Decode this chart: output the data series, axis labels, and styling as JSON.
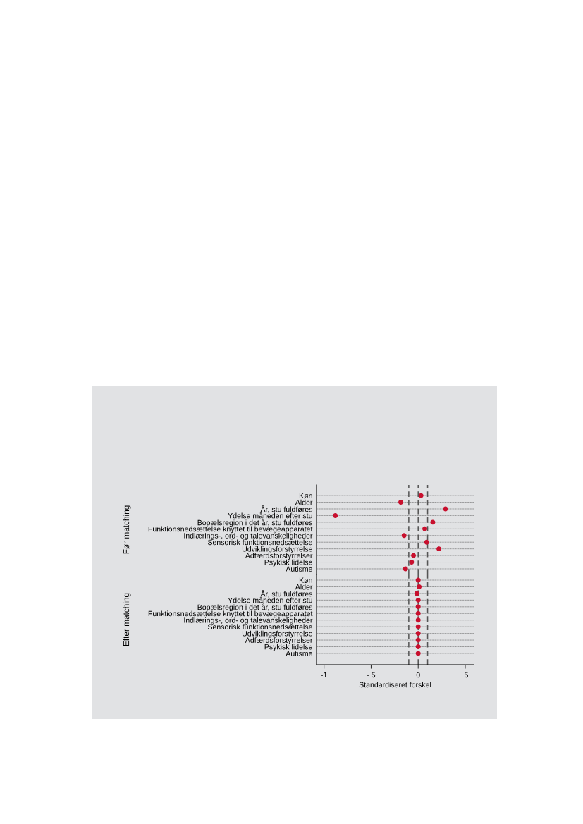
{
  "chart_data": [
    {
      "type": "scatter",
      "ylabel": "Før matching",
      "categories": [
        "Køn",
        "Alder",
        "År, stu fuldføres",
        "Ydelse måneden efter stu",
        "Bopælsregion i det år, stu fuldføres",
        "Funktionsnedsættelse knyttet til bevægeapparatet",
        "Indlærings-, ord- og talevanskeligheder",
        "Sensorisk funktionsnedsættelse",
        "Udviklingsforstyrrelse",
        "Adfærdsforstyrrelser",
        "Psykisk lidelse",
        "Autisme"
      ],
      "orientation": "horizontal",
      "series": [
        {
          "color": "#c8102e",
          "values": [
            0.03,
            -0.185,
            0.29,
            -0.88,
            0.155,
            0.07,
            -0.15,
            0.09,
            0.22,
            -0.05,
            -0.07,
            -0.135
          ]
        }
      ],
      "xlim": [
        -1.08,
        0.59
      ],
      "tick_labels": "y",
      "grid": "y",
      "marker": "circle",
      "ref_lines": [
        {
          "axis": "x",
          "value": -0.1,
          "color": "#555555",
          "line_style": "dashed"
        },
        {
          "axis": "x",
          "value": 0,
          "color": "#555555",
          "line_style": "dashed"
        },
        {
          "axis": "x",
          "value": 0.1,
          "color": "#555555",
          "line_style": "dashed"
        }
      ]
    },
    {
      "type": "scatter",
      "ylabel": "Efter matching",
      "xlabel": "Standardiseret forskel",
      "categories": [
        "Køn",
        "Alder",
        "År, stu fuldføres",
        "Ydelse måneden efter stu",
        "Bopælsregion i det år, stu fuldføres",
        "Funktionsnedsættelse knyttet til bevægeapparatet",
        "Indlærings-, ord- og talevanskeligheder",
        "Sensorisk funktionsnedsættelse",
        "Udviklingsforstyrrelse",
        "Adfærdsforstyrrelser",
        "Psykisk lidelse",
        "Autisme"
      ],
      "orientation": "horizontal",
      "series": [
        {
          "color": "#c8102e",
          "values": [
            0,
            0.01,
            -0.015,
            0,
            0,
            0,
            0,
            0,
            0,
            0,
            0,
            0
          ]
        }
      ],
      "xlim": [
        -1.08,
        0.59
      ],
      "xticks": [
        {
          "value": -1,
          "label": "-1"
        },
        {
          "value": -0.5,
          "label": "-.5"
        },
        0,
        {
          "value": 0.5,
          "label": ".5"
        }
      ],
      "grid": "y",
      "marker": "circle",
      "ref_lines": [
        {
          "axis": "x",
          "value": -0.1,
          "color": "#555555",
          "line_style": "dashed"
        },
        {
          "axis": "x",
          "value": 0,
          "color": "#555555",
          "line_style": "dashed"
        },
        {
          "axis": "x",
          "value": 0.1,
          "color": "#555555",
          "line_style": "dashed"
        }
      ]
    }
  ]
}
